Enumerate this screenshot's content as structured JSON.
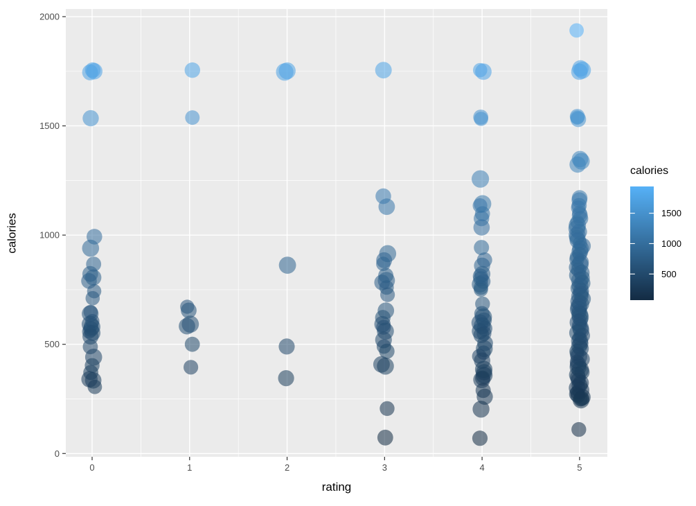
{
  "figure": {
    "background": "#FFFFFF",
    "panel_background": "#EBEBEB",
    "grid_color": "#FFFFFF",
    "axis_tick_color": "#333333",
    "tick_label_color": "#4D4D4D"
  },
  "chart_data": {
    "type": "scatter",
    "title": "",
    "xlabel": "rating",
    "ylabel": "calories",
    "xlim": [
      -0.27,
      5.285
    ],
    "ylim": [
      -15,
      2035
    ],
    "x_ticks": [
      0,
      1,
      2,
      3,
      4,
      5
    ],
    "y_ticks": [
      0,
      500,
      1000,
      1500,
      2000
    ],
    "x_minor_ticks": [
      0.5,
      1.5,
      2.5,
      3.5,
      4.5
    ],
    "y_minor_ticks": [
      250,
      750,
      1250,
      1750
    ],
    "grid": true,
    "point_alpha": 0.55,
    "legend": {
      "title": "calories",
      "position": "right",
      "low_color": "#132B43",
      "high_color": "#56B1F7",
      "domain": [
        70,
        1940
      ],
      "ticks": [
        500,
        1000,
        1500
      ]
    },
    "points": [
      [
        0,
        1755
      ],
      [
        0,
        1750
      ],
      [
        0,
        1745
      ],
      [
        0,
        1535
      ],
      [
        0,
        993
      ],
      [
        0,
        940
      ],
      [
        0,
        867
      ],
      [
        0,
        822
      ],
      [
        0,
        806
      ],
      [
        0,
        790
      ],
      [
        0,
        743
      ],
      [
        0,
        711
      ],
      [
        0,
        648
      ],
      [
        0,
        640
      ],
      [
        0,
        606
      ],
      [
        0,
        592
      ],
      [
        0,
        580
      ],
      [
        0,
        570
      ],
      [
        0,
        558
      ],
      [
        0,
        552
      ],
      [
        0,
        536
      ],
      [
        0,
        489
      ],
      [
        0,
        441
      ],
      [
        0,
        403
      ],
      [
        0,
        371
      ],
      [
        0,
        340
      ],
      [
        0,
        335
      ],
      [
        0,
        305
      ],
      [
        1,
        1755
      ],
      [
        1,
        1538
      ],
      [
        1,
        672
      ],
      [
        1,
        655
      ],
      [
        1,
        592
      ],
      [
        1,
        583
      ],
      [
        1,
        500
      ],
      [
        1,
        395
      ],
      [
        2,
        1752
      ],
      [
        2,
        1747
      ],
      [
        2,
        862
      ],
      [
        2,
        490
      ],
      [
        2,
        345
      ],
      [
        3,
        1755
      ],
      [
        3,
        1178
      ],
      [
        3,
        1130
      ],
      [
        3,
        915
      ],
      [
        3,
        885
      ],
      [
        3,
        868
      ],
      [
        3,
        815
      ],
      [
        3,
        792
      ],
      [
        3,
        783
      ],
      [
        3,
        760
      ],
      [
        3,
        727
      ],
      [
        3,
        654
      ],
      [
        3,
        622
      ],
      [
        3,
        592
      ],
      [
        3,
        578
      ],
      [
        3,
        560
      ],
      [
        3,
        520
      ],
      [
        3,
        490
      ],
      [
        3,
        468
      ],
      [
        3,
        408
      ],
      [
        3,
        400
      ],
      [
        3,
        206
      ],
      [
        3,
        73
      ],
      [
        4,
        1755
      ],
      [
        4,
        1748
      ],
      [
        4,
        1540
      ],
      [
        4,
        1532
      ],
      [
        4,
        1257
      ],
      [
        4,
        1143
      ],
      [
        4,
        1135
      ],
      [
        4,
        1098
      ],
      [
        4,
        1076
      ],
      [
        4,
        1035
      ],
      [
        4,
        943
      ],
      [
        4,
        886
      ],
      [
        4,
        860
      ],
      [
        4,
        822
      ],
      [
        4,
        812
      ],
      [
        4,
        800
      ],
      [
        4,
        788
      ],
      [
        4,
        775
      ],
      [
        4,
        760
      ],
      [
        4,
        750
      ],
      [
        4,
        685
      ],
      [
        4,
        640
      ],
      [
        4,
        625
      ],
      [
        4,
        610
      ],
      [
        4,
        598
      ],
      [
        4,
        585
      ],
      [
        4,
        572
      ],
      [
        4,
        560
      ],
      [
        4,
        550
      ],
      [
        4,
        542
      ],
      [
        4,
        505
      ],
      [
        4,
        480
      ],
      [
        4,
        462
      ],
      [
        4,
        445
      ],
      [
        4,
        425
      ],
      [
        4,
        385
      ],
      [
        4,
        372
      ],
      [
        4,
        358
      ],
      [
        4,
        345
      ],
      [
        4,
        338
      ],
      [
        4,
        289
      ],
      [
        4,
        260
      ],
      [
        4,
        203
      ],
      [
        4,
        70
      ],
      [
        5,
        1937
      ],
      [
        5,
        1763
      ],
      [
        5,
        1755
      ],
      [
        5,
        1748
      ],
      [
        5,
        1543
      ],
      [
        5,
        1538
      ],
      [
        5,
        1530
      ],
      [
        5,
        1348
      ],
      [
        5,
        1338
      ],
      [
        5,
        1323
      ],
      [
        5,
        1170
      ],
      [
        5,
        1160
      ],
      [
        5,
        1135
      ],
      [
        5,
        1125
      ],
      [
        5,
        1100
      ],
      [
        5,
        1090
      ],
      [
        5,
        1075
      ],
      [
        5,
        1060
      ],
      [
        5,
        1045
      ],
      [
        5,
        1030
      ],
      [
        5,
        1015
      ],
      [
        5,
        1000
      ],
      [
        5,
        988
      ],
      [
        5,
        975
      ],
      [
        5,
        962
      ],
      [
        5,
        950
      ],
      [
        5,
        938
      ],
      [
        5,
        925
      ],
      [
        5,
        912
      ],
      [
        5,
        900
      ],
      [
        5,
        888
      ],
      [
        5,
        876
      ],
      [
        5,
        864
      ],
      [
        5,
        852
      ],
      [
        5,
        840
      ],
      [
        5,
        828
      ],
      [
        5,
        816
      ],
      [
        5,
        804
      ],
      [
        5,
        792
      ],
      [
        5,
        780
      ],
      [
        5,
        768
      ],
      [
        5,
        756
      ],
      [
        5,
        744
      ],
      [
        5,
        732
      ],
      [
        5,
        720
      ],
      [
        5,
        708
      ],
      [
        5,
        696
      ],
      [
        5,
        684
      ],
      [
        5,
        672
      ],
      [
        5,
        660
      ],
      [
        5,
        648
      ],
      [
        5,
        636
      ],
      [
        5,
        624
      ],
      [
        5,
        612
      ],
      [
        5,
        600
      ],
      [
        5,
        588
      ],
      [
        5,
        576
      ],
      [
        5,
        564
      ],
      [
        5,
        552
      ],
      [
        5,
        540
      ],
      [
        5,
        528
      ],
      [
        5,
        516
      ],
      [
        5,
        504
      ],
      [
        5,
        492
      ],
      [
        5,
        480
      ],
      [
        5,
        468
      ],
      [
        5,
        456
      ],
      [
        5,
        444
      ],
      [
        5,
        432
      ],
      [
        5,
        420
      ],
      [
        5,
        408
      ],
      [
        5,
        396
      ],
      [
        5,
        384
      ],
      [
        5,
        372
      ],
      [
        5,
        360
      ],
      [
        5,
        348
      ],
      [
        5,
        336
      ],
      [
        5,
        324
      ],
      [
        5,
        312
      ],
      [
        5,
        300
      ],
      [
        5,
        290
      ],
      [
        5,
        280
      ],
      [
        5,
        272
      ],
      [
        5,
        265
      ],
      [
        5,
        258
      ],
      [
        5,
        252
      ],
      [
        5,
        248
      ],
      [
        5,
        245
      ],
      [
        5,
        110
      ]
    ]
  }
}
